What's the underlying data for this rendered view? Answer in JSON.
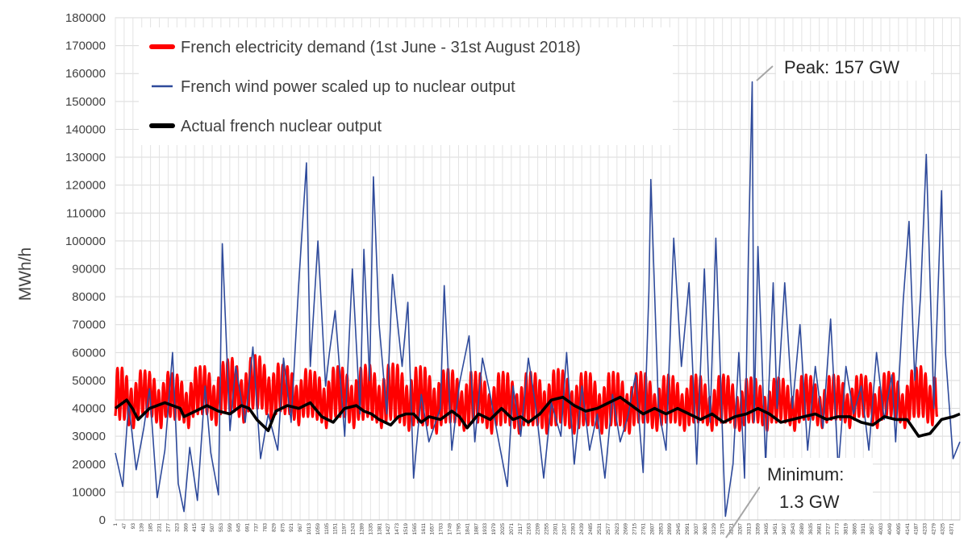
{
  "chart_data": {
    "type": "line",
    "ylabel": "MWh/h",
    "xlabel": "",
    "ylim": [
      0,
      180000
    ],
    "ytick_step": 10000,
    "grid": true,
    "xlim": [
      1,
      4416
    ],
    "x_tick_labels": [
      "1",
      "47",
      "93",
      "139",
      "185",
      "231",
      "277",
      "323",
      "369",
      "415",
      "461",
      "507",
      "553",
      "599",
      "645",
      "691",
      "737",
      "783",
      "829",
      "875",
      "921",
      "967",
      "1013",
      "1059",
      "1105",
      "1151",
      "1197",
      "1243",
      "1289",
      "1335",
      "1381",
      "1427",
      "1473",
      "1519",
      "1565",
      "1611",
      "1657",
      "1703",
      "1749",
      "1795",
      "1841",
      "1887",
      "1933",
      "1979",
      "2025",
      "2071",
      "2117",
      "2163",
      "2209",
      "2255",
      "2301",
      "2347",
      "2393",
      "2439",
      "2485",
      "2531",
      "2577",
      "2623",
      "2669",
      "2715",
      "2761",
      "2807",
      "2853",
      "2899",
      "2945",
      "2991",
      "3037",
      "3083",
      "3129",
      "3175",
      "3221",
      "3267",
      "3313",
      "3359",
      "3405",
      "3451",
      "3497",
      "3543",
      "3589",
      "3635",
      "3681",
      "3727",
      "3773",
      "3819",
      "3865",
      "3911",
      "3957",
      "4003",
      "4049",
      "4095",
      "4141",
      "4187",
      "4233",
      "4279",
      "4325",
      "4371"
    ],
    "legend_position": "top-left",
    "series": [
      {
        "name": "French electricity demand (1st June - 31st August 2018)",
        "color": "#ff0000",
        "x": [
          1,
          24,
          48,
          72,
          96,
          120,
          144,
          168,
          192,
          216,
          240,
          264,
          288,
          312,
          336,
          360,
          384,
          408,
          432,
          456,
          480,
          504,
          528,
          552,
          576,
          600,
          624,
          648,
          672,
          696,
          720,
          744,
          768,
          792,
          816,
          840,
          864,
          888,
          912,
          936,
          960,
          984,
          1008,
          1032,
          1056,
          1080,
          1104,
          1128,
          1152,
          1176,
          1200,
          1224,
          1248,
          1272,
          1296,
          1320,
          1344,
          1368,
          1392,
          1416,
          1440,
          1464,
          1488,
          1512,
          1536,
          1560,
          1584,
          1608,
          1632,
          1656,
          1680,
          1704,
          1728,
          1752,
          1776,
          1800,
          1824,
          1848,
          1872,
          1896,
          1920,
          1944,
          1968,
          1992,
          2016,
          2040,
          2064,
          2088,
          2112,
          2136,
          2160,
          2184,
          2208,
          2232,
          2256,
          2280,
          2304,
          2328,
          2352,
          2376,
          2400,
          2424,
          2448,
          2472,
          2496,
          2520,
          2544,
          2568,
          2592,
          2616,
          2640,
          2664,
          2688,
          2712,
          2736,
          2760,
          2784,
          2808,
          2832,
          2856,
          2880,
          2904,
          2928,
          2952,
          2976,
          3000,
          3024,
          3048,
          3072,
          3096,
          3120,
          3144,
          3168,
          3192,
          3216,
          3240,
          3264,
          3288,
          3312,
          3336,
          3360,
          3384,
          3408,
          3432,
          3456,
          3480,
          3504,
          3528,
          3552,
          3576,
          3600,
          3624,
          3648,
          3672,
          3696,
          3720,
          3744,
          3768,
          3792,
          3816,
          3840,
          3864,
          3888,
          3912,
          3936,
          3960,
          3984,
          4008,
          4032,
          4056,
          4080,
          4104,
          4128,
          4152,
          4176,
          4200,
          4224,
          4248,
          4272,
          4296,
          4320,
          4344,
          4368,
          4392,
          4416
        ],
        "daily_min": [
          37000,
          36000,
          36000,
          34000,
          33000,
          37000,
          38000,
          37000,
          37000,
          35000,
          33000,
          37000,
          37000,
          36000,
          36000,
          35000,
          33000,
          37000,
          38000,
          38000,
          38000,
          36000,
          34000,
          38000,
          39000,
          39000,
          39000,
          37000,
          35000,
          39000,
          40000,
          40000,
          40000,
          38000,
          36000,
          38000,
          39000,
          38000,
          38000,
          36000,
          34000,
          37000,
          37000,
          37000,
          36000,
          35000,
          33000,
          36000,
          37000,
          37000,
          37000,
          35000,
          33000,
          36000,
          36000,
          37000,
          36000,
          35000,
          33000,
          35000,
          36000,
          36000,
          35000,
          34000,
          32000,
          34000,
          35000,
          34000,
          34000,
          33000,
          31000,
          34000,
          35000,
          35000,
          35000,
          34000,
          32000,
          34000,
          35000,
          35000,
          35000,
          33000,
          31000,
          34000,
          34000,
          35000,
          34000,
          33000,
          31000,
          34000,
          34000,
          34000,
          34000,
          33000,
          31000,
          34000,
          34000,
          35000,
          34000,
          33000,
          31000,
          33000,
          34000,
          34000,
          34000,
          33000,
          31000,
          33000,
          34000,
          34000,
          34000,
          32000,
          31000,
          34000,
          35000,
          35000,
          35000,
          33000,
          32000,
          34000,
          35000,
          35000,
          35000,
          34000,
          32000,
          34000,
          35000,
          35000,
          35000,
          34000,
          32000,
          34000,
          35000,
          35000,
          35000,
          33000,
          32000,
          34000,
          35000,
          35000,
          35000,
          34000,
          32000,
          35000,
          35000,
          36000,
          35000,
          34000,
          32000,
          35000,
          36000,
          36000,
          36000,
          34000,
          33000,
          35000,
          36000,
          36000,
          36000,
          35000,
          33000,
          36000,
          37000,
          37000,
          37000,
          35000,
          33000,
          36000,
          37000,
          37000,
          36000,
          35000,
          33000,
          36000,
          37000,
          37000,
          37000,
          35000,
          34000,
          37000
        ],
        "daily_max": [
          54000,
          55000,
          54000,
          49000,
          45000,
          53000,
          54000,
          53000,
          53000,
          48000,
          45000,
          53000,
          53000,
          52000,
          52000,
          47000,
          44000,
          54000,
          55000,
          55000,
          55000,
          50000,
          46000,
          56000,
          57000,
          58000,
          58000,
          52000,
          48000,
          57000,
          59000,
          59000,
          58000,
          53000,
          49000,
          56000,
          56000,
          55000,
          55000,
          50000,
          46000,
          54000,
          54000,
          53000,
          53000,
          49000,
          45000,
          54000,
          55000,
          55000,
          54000,
          50000,
          46000,
          54000,
          55000,
          56000,
          55000,
          50000,
          46000,
          55000,
          56000,
          56000,
          55000,
          50000,
          46000,
          54000,
          55000,
          55000,
          54000,
          49000,
          45000,
          53000,
          54000,
          54000,
          53000,
          48000,
          44000,
          53000,
          53000,
          53000,
          52000,
          47000,
          43000,
          52000,
          53000,
          53000,
          52000,
          47000,
          43000,
          52000,
          53000,
          53000,
          52000,
          48000,
          44000,
          53000,
          54000,
          54000,
          53000,
          48000,
          44000,
          52000,
          53000,
          53000,
          52000,
          47000,
          43000,
          52000,
          53000,
          53000,
          52000,
          47000,
          43000,
          52000,
          53000,
          53000,
          52000,
          47000,
          43000,
          51000,
          52000,
          52000,
          51000,
          47000,
          43000,
          51000,
          52000,
          52000,
          51000,
          46000,
          42000,
          51000,
          52000,
          52000,
          51000,
          46000,
          42000,
          50000,
          51000,
          51000,
          50000,
          46000,
          42000,
          50000,
          51000,
          51000,
          50000,
          46000,
          42000,
          51000,
          52000,
          52000,
          51000,
          46000,
          42000,
          51000,
          52000,
          52000,
          51000,
          47000,
          43000,
          51000,
          52000,
          52000,
          51000,
          47000,
          43000,
          52000,
          53000,
          53000,
          52000,
          47000,
          43000,
          53000,
          54000,
          55000,
          55000,
          50000,
          46000,
          56000
        ]
      },
      {
        "name": "French wind power scaled up to nuclear output",
        "color": "#2e4a9b",
        "x": [
          1,
          40,
          70,
          110,
          150,
          180,
          220,
          260,
          300,
          330,
          360,
          390,
          430,
          470,
          500,
          540,
          560,
          600,
          630,
          680,
          720,
          760,
          800,
          850,
          880,
          920,
          960,
          1000,
          1020,
          1060,
          1100,
          1120,
          1150,
          1200,
          1240,
          1280,
          1300,
          1330,
          1350,
          1380,
          1420,
          1450,
          1500,
          1530,
          1560,
          1600,
          1640,
          1700,
          1720,
          1760,
          1800,
          1850,
          1880,
          1920,
          1960,
          2000,
          2050,
          2080,
          2120,
          2160,
          2200,
          2240,
          2280,
          2330,
          2360,
          2400,
          2440,
          2480,
          2520,
          2560,
          2600,
          2640,
          2680,
          2720,
          2760,
          2790,
          2800,
          2840,
          2880,
          2920,
          2960,
          3000,
          3040,
          3080,
          3110,
          3140,
          3180,
          3190,
          3230,
          3260,
          3290,
          3310,
          3330,
          3340,
          3360,
          3380,
          3400,
          3440,
          3460,
          3500,
          3540,
          3580,
          3620,
          3660,
          3700,
          3740,
          3780,
          3820,
          3860,
          3900,
          3940,
          3980,
          4020,
          4060,
          4080,
          4120,
          4150,
          4180,
          4210,
          4240,
          4280,
          4320,
          4340,
          4380,
          4416
        ],
        "values": [
          24000,
          12000,
          42000,
          18000,
          33000,
          47000,
          8000,
          25000,
          60000,
          13000,
          3000,
          26000,
          7000,
          48000,
          24000,
          9000,
          99000,
          32000,
          55000,
          35000,
          62000,
          22000,
          38000,
          25000,
          58000,
          35000,
          85000,
          128000,
          55000,
          100000,
          48000,
          60000,
          75000,
          30000,
          90000,
          38000,
          97000,
          50000,
          123000,
          70000,
          38000,
          88000,
          55000,
          78000,
          15000,
          45000,
          28000,
          40000,
          84000,
          25000,
          49000,
          66000,
          28000,
          58000,
          45000,
          30000,
          12000,
          48000,
          30000,
          58000,
          40000,
          15000,
          42000,
          30000,
          60000,
          20000,
          48000,
          25000,
          38000,
          15000,
          45000,
          28000,
          37000,
          52000,
          17000,
          82000,
          122000,
          40000,
          25000,
          101000,
          55000,
          85000,
          20000,
          90000,
          35000,
          101000,
          20000,
          1300,
          20000,
          60000,
          15000,
          94000,
          157000,
          35000,
          98000,
          60000,
          20000,
          85000,
          40000,
          85000,
          40000,
          70000,
          25000,
          55000,
          33000,
          72000,
          18000,
          55000,
          38000,
          48000,
          25000,
          60000,
          36000,
          52000,
          28000,
          79000,
          107000,
          50000,
          80000,
          131000,
          40000,
          118000,
          60000,
          22000,
          28000
        ]
      },
      {
        "name": "Actual french nuclear output",
        "color": "#000000",
        "x": [
          1,
          60,
          90,
          120,
          150,
          180,
          260,
          300,
          340,
          360,
          420,
          480,
          540,
          600,
          660,
          700,
          740,
          800,
          840,
          900,
          960,
          1020,
          1080,
          1140,
          1200,
          1260,
          1300,
          1340,
          1380,
          1440,
          1480,
          1520,
          1560,
          1600,
          1640,
          1700,
          1760,
          1800,
          1840,
          1900,
          1960,
          2020,
          2080,
          2120,
          2160,
          2220,
          2280,
          2340,
          2400,
          2460,
          2520,
          2580,
          2640,
          2700,
          2760,
          2820,
          2880,
          2940,
          3000,
          3060,
          3120,
          3180,
          3240,
          3300,
          3360,
          3420,
          3480,
          3540,
          3600,
          3660,
          3720,
          3780,
          3840,
          3900,
          3960,
          4020,
          4080,
          4140,
          4200,
          4260,
          4320,
          4380,
          4416
        ],
        "values": [
          40000,
          43000,
          40000,
          36000,
          38000,
          40000,
          42000,
          41000,
          40000,
          37000,
          39000,
          41000,
          39000,
          38000,
          41000,
          40000,
          36000,
          32000,
          39000,
          41000,
          40000,
          42000,
          37000,
          35000,
          40000,
          41000,
          39000,
          38000,
          36000,
          34000,
          37000,
          38000,
          38000,
          35000,
          37000,
          36000,
          39000,
          37000,
          33000,
          38000,
          36000,
          40000,
          36000,
          37000,
          35000,
          38000,
          43000,
          44000,
          41000,
          39000,
          40000,
          42000,
          44000,
          41000,
          38000,
          40000,
          38000,
          40000,
          38000,
          36000,
          38000,
          35000,
          37000,
          38000,
          40000,
          38000,
          35000,
          36000,
          37000,
          38000,
          36000,
          37000,
          37000,
          35000,
          34000,
          37000,
          36000,
          36000,
          30000,
          31000,
          36000,
          37000,
          38000
        ]
      }
    ],
    "annotations": [
      {
        "text": "Peak: 157 GW",
        "x": 3335,
        "y": 157000
      },
      {
        "text": "Minimum:",
        "x": 3190,
        "y": 1300
      },
      {
        "text": "1.3 GW",
        "x": 3190,
        "y": 1300
      }
    ]
  }
}
